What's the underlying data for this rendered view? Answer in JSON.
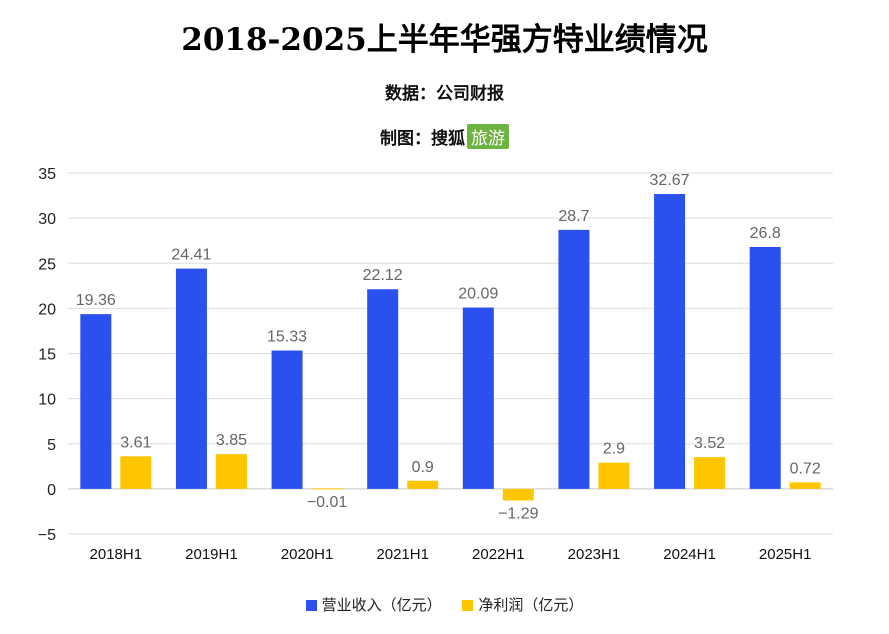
{
  "header": {
    "title": "2018-2025上半年华强方特业绩情况",
    "source": "数据：公司财报",
    "credit_prefix": "制图：",
    "credit_brand": "搜狐",
    "credit_tag": "旅游"
  },
  "colors": {
    "revenue": "#2b50f0",
    "profit": "#ffc600"
  },
  "chart_data": {
    "type": "bar",
    "categories": [
      "2018H1",
      "2019H1",
      "2020H1",
      "2021H1",
      "2022H1",
      "2023H1",
      "2024H1",
      "2025H1"
    ],
    "series": [
      {
        "name": "营业收入（亿元）",
        "values": [
          19.36,
          24.41,
          15.33,
          22.12,
          20.09,
          28.7,
          32.67,
          26.8
        ],
        "labels": [
          "19.36",
          "24.41",
          "15.33",
          "22.12",
          "20.09",
          "28.7",
          "32.67",
          "26.8"
        ]
      },
      {
        "name": "净利润（亿元）",
        "values": [
          3.61,
          3.85,
          -0.01,
          0.9,
          -1.29,
          2.9,
          3.52,
          0.72
        ],
        "labels": [
          "3.61",
          "3.85",
          "−0.01",
          "0.9",
          "−1.29",
          "2.9",
          "3.52",
          "0.72"
        ]
      }
    ],
    "yticks": [
      "−5",
      "0",
      "5",
      "10",
      "15",
      "20",
      "25",
      "30",
      "35"
    ],
    "ylim": [
      -5,
      35
    ],
    "grid": true,
    "legend": "bottom"
  }
}
